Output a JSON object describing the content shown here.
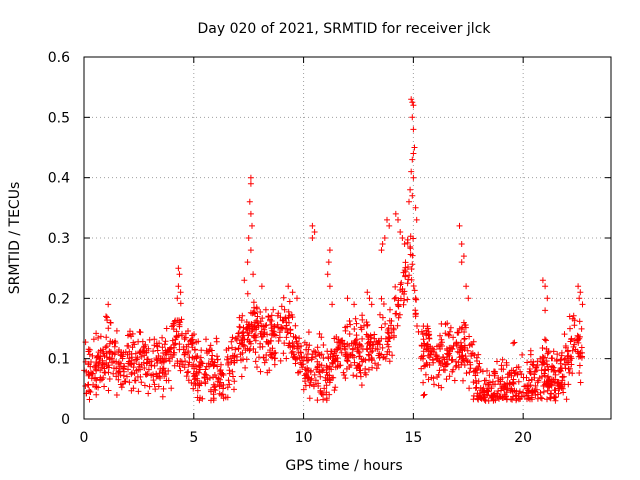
{
  "chart_data": {
    "type": "scatter",
    "title": "Day 020 of 2021, SRMTID for receiver jlck",
    "xlabel": "GPS time / hours",
    "ylabel": "SRMTID / TECUs",
    "xlim": [
      0,
      24
    ],
    "ylim": [
      0,
      0.6
    ],
    "xticks": [
      0,
      5,
      10,
      15,
      20
    ],
    "xtick_labels": [
      "0",
      "5",
      "10",
      "15",
      "20"
    ],
    "yticks": [
      0,
      0.1,
      0.2,
      0.3,
      0.4,
      0.5,
      0.6
    ],
    "ytick_labels": [
      "0",
      "0.1",
      "0.2",
      "0.3",
      "0.4",
      "0.5",
      "0.6"
    ],
    "grid": true,
    "marker": "+",
    "color": "#ff0000",
    "series": [
      {
        "name": "SRMTID",
        "baseline": [
          [
            0.0,
            0.07
          ],
          [
            0.5,
            0.08
          ],
          [
            1.0,
            0.11
          ],
          [
            1.5,
            0.1
          ],
          [
            2.0,
            0.09
          ],
          [
            2.5,
            0.1
          ],
          [
            3.0,
            0.09
          ],
          [
            3.5,
            0.09
          ],
          [
            4.0,
            0.1
          ],
          [
            4.3,
            0.15
          ],
          [
            4.6,
            0.11
          ],
          [
            5.0,
            0.09
          ],
          [
            5.5,
            0.08
          ],
          [
            6.0,
            0.08
          ],
          [
            6.5,
            0.07
          ],
          [
            7.0,
            0.11
          ],
          [
            7.5,
            0.15
          ],
          [
            8.0,
            0.14
          ],
          [
            8.5,
            0.13
          ],
          [
            9.0,
            0.15
          ],
          [
            9.5,
            0.14
          ],
          [
            10.0,
            0.09
          ],
          [
            10.5,
            0.08
          ],
          [
            11.0,
            0.08
          ],
          [
            11.5,
            0.1
          ],
          [
            12.0,
            0.11
          ],
          [
            12.5,
            0.11
          ],
          [
            13.0,
            0.12
          ],
          [
            13.5,
            0.13
          ],
          [
            14.0,
            0.15
          ],
          [
            14.5,
            0.22
          ],
          [
            14.9,
            0.28
          ],
          [
            15.2,
            0.15
          ],
          [
            15.5,
            0.1
          ],
          [
            16.0,
            0.11
          ],
          [
            16.5,
            0.1
          ],
          [
            17.0,
            0.11
          ],
          [
            17.5,
            0.12
          ],
          [
            18.0,
            0.05
          ],
          [
            18.5,
            0.05
          ],
          [
            19.0,
            0.05
          ],
          [
            19.5,
            0.06
          ],
          [
            20.0,
            0.06
          ],
          [
            20.5,
            0.06
          ],
          [
            21.0,
            0.08
          ],
          [
            21.5,
            0.06
          ],
          [
            22.0,
            0.09
          ],
          [
            22.3,
            0.14
          ],
          [
            22.7,
            0.1
          ]
        ],
        "spread": 0.035,
        "n_points": 1700,
        "spikes": [
          [
            1.1,
            0.19
          ],
          [
            1.0,
            0.17
          ],
          [
            1.2,
            0.16
          ],
          [
            4.3,
            0.25
          ],
          [
            4.35,
            0.24
          ],
          [
            4.3,
            0.22
          ],
          [
            4.4,
            0.21
          ],
          [
            4.25,
            0.2
          ],
          [
            7.6,
            0.4
          ],
          [
            7.6,
            0.39
          ],
          [
            7.55,
            0.36
          ],
          [
            7.6,
            0.34
          ],
          [
            7.65,
            0.32
          ],
          [
            7.5,
            0.3
          ],
          [
            7.6,
            0.28
          ],
          [
            7.45,
            0.26
          ],
          [
            7.7,
            0.24
          ],
          [
            7.3,
            0.23
          ],
          [
            8.1,
            0.22
          ],
          [
            9.3,
            0.22
          ],
          [
            9.5,
            0.21
          ],
          [
            9.7,
            0.2
          ],
          [
            10.4,
            0.32
          ],
          [
            10.5,
            0.31
          ],
          [
            10.4,
            0.3
          ],
          [
            11.2,
            0.28
          ],
          [
            11.15,
            0.26
          ],
          [
            11.1,
            0.24
          ],
          [
            11.2,
            0.22
          ],
          [
            11.3,
            0.19
          ],
          [
            12.0,
            0.2
          ],
          [
            12.3,
            0.19
          ],
          [
            12.9,
            0.21
          ],
          [
            13.0,
            0.2
          ],
          [
            13.1,
            0.19
          ],
          [
            13.6,
            0.29
          ],
          [
            13.7,
            0.3
          ],
          [
            13.55,
            0.28
          ],
          [
            13.8,
            0.33
          ],
          [
            13.9,
            0.32
          ],
          [
            14.2,
            0.34
          ],
          [
            14.3,
            0.33
          ],
          [
            14.4,
            0.31
          ],
          [
            14.5,
            0.3
          ],
          [
            14.6,
            0.29
          ],
          [
            14.8,
            0.36
          ],
          [
            14.85,
            0.38
          ],
          [
            14.9,
            0.41
          ],
          [
            14.95,
            0.43
          ],
          [
            15.0,
            0.44
          ],
          [
            15.05,
            0.45
          ],
          [
            15.0,
            0.4
          ],
          [
            14.95,
            0.37
          ],
          [
            14.9,
            0.53
          ],
          [
            14.95,
            0.525
          ],
          [
            15.0,
            0.52
          ],
          [
            14.95,
            0.5
          ],
          [
            15.0,
            0.48
          ],
          [
            15.1,
            0.35
          ],
          [
            15.15,
            0.33
          ],
          [
            17.1,
            0.32
          ],
          [
            17.2,
            0.29
          ],
          [
            17.3,
            0.27
          ],
          [
            17.2,
            0.26
          ],
          [
            17.4,
            0.22
          ],
          [
            17.5,
            0.2
          ],
          [
            20.9,
            0.23
          ],
          [
            21.0,
            0.22
          ],
          [
            21.1,
            0.2
          ],
          [
            21.0,
            0.18
          ],
          [
            22.5,
            0.22
          ],
          [
            22.6,
            0.21
          ],
          [
            22.55,
            0.2
          ],
          [
            22.7,
            0.19
          ]
        ]
      }
    ]
  }
}
